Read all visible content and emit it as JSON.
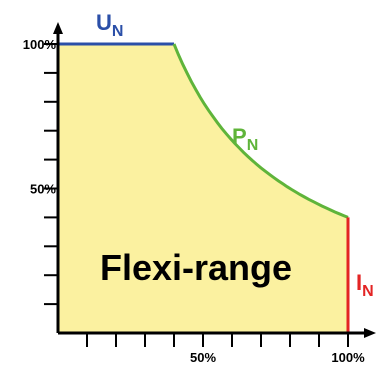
{
  "diagram": {
    "region_label": "Flexi-range",
    "axis_x": {
      "tick_labels": [
        {
          "value": 50,
          "label": "50%"
        },
        {
          "value": 100,
          "label": "100%"
        }
      ],
      "tick_values": [
        10,
        20,
        30,
        40,
        50,
        60,
        70,
        80,
        90,
        100
      ]
    },
    "axis_y": {
      "tick_labels": [
        {
          "value": 50,
          "label": "50%"
        },
        {
          "value": 100,
          "label": "100%"
        }
      ],
      "tick_values": [
        10,
        20,
        30,
        40,
        50,
        60,
        70,
        80,
        90,
        100
      ]
    },
    "curves": {
      "voltage": {
        "main": "U",
        "sub": "N",
        "color": "#2b4fa8",
        "x_end": 40,
        "y": 100
      },
      "power": {
        "main": "P",
        "sub": "N",
        "color": "#5fb43a",
        "x_start": 40,
        "x_end": 100
      },
      "current": {
        "main": "I",
        "sub": "N",
        "color": "#e32424",
        "x": 100,
        "y_top": 40
      }
    },
    "fill_color": "#fbf1a0"
  }
}
